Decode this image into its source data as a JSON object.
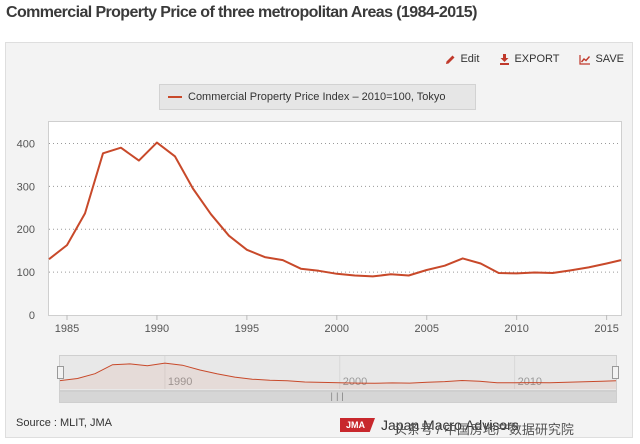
{
  "page_title": "Commercial Property Price of three metropolitan Areas (1984-2015)",
  "toolbar": {
    "edit_label": "Edit",
    "export_label": "EXPORT",
    "save_label": "SAVE"
  },
  "source_label": "Source : MLIT, JMA",
  "logo": {
    "badge": "JMA",
    "name": "Japan Macro Advisors"
  },
  "watermark": "头条号 / 中国房地产数据研究院",
  "colors": {
    "line": "#c8492a",
    "grid": "#9a9a9a",
    "badge": "#c8282d"
  },
  "chart_data": {
    "type": "line",
    "title": "Commercial Property Price of three metropolitan Areas (1984-2015)",
    "xlabel": "",
    "ylabel": "",
    "xlim": [
      1984,
      2015.8
    ],
    "ylim": [
      0,
      450
    ],
    "x_ticks": [
      1985,
      1990,
      1995,
      2000,
      2005,
      2010,
      2015
    ],
    "y_ticks": [
      0,
      100,
      200,
      300,
      400
    ],
    "grid": "horizontal dotted",
    "legend_position": "top-center",
    "series": [
      {
        "name": "Commercial Property Price Index – 2010=100, Tokyo",
        "x": [
          1984,
          1985,
          1986,
          1987,
          1988,
          1989,
          1990,
          1991,
          1992,
          1993,
          1994,
          1995,
          1996,
          1997,
          1998,
          1999,
          2000,
          2001,
          2002,
          2003,
          2004,
          2005,
          2006,
          2007,
          2008,
          2009,
          2010,
          2011,
          2012,
          2013,
          2014,
          2015,
          2015.8
        ],
        "values": [
          130,
          163,
          237,
          377,
          390,
          360,
          402,
          370,
          295,
          235,
          185,
          152,
          135,
          128,
          108,
          103,
          96,
          92,
          90,
          95,
          92,
          105,
          115,
          132,
          120,
          98,
          97,
          99,
          98,
          104,
          111,
          120,
          128
        ]
      }
    ],
    "navigator": {
      "x_ticks": [
        1990,
        2000,
        2010
      ],
      "range": [
        1984,
        2015.8
      ]
    }
  }
}
